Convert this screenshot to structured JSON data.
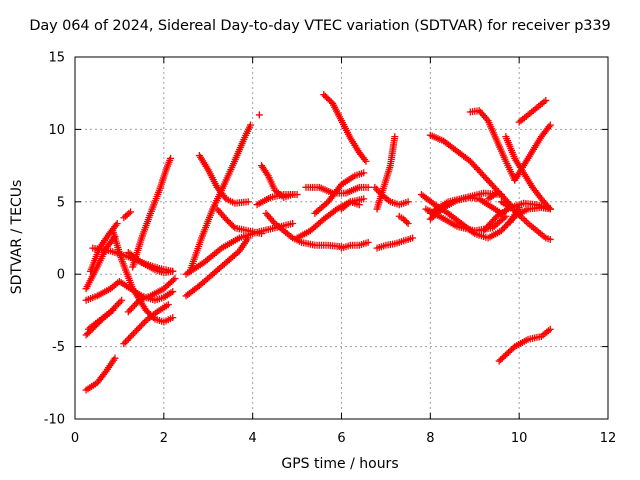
{
  "chart_data": {
    "type": "scatter",
    "title": "Day 064 of 2024, Sidereal Day-to-day VTEC variation (SDTVAR) for receiver p339",
    "xlabel": "GPS time / hours",
    "ylabel": "SDTVAR / TECUs",
    "xlim": [
      0,
      12
    ],
    "ylim": [
      -10,
      15
    ],
    "xticks": [
      "0",
      "2",
      "4",
      "6",
      "8",
      "10",
      "12"
    ],
    "yticks": [
      "-10",
      "-5",
      "0",
      "5",
      "10",
      "15"
    ],
    "grid": true,
    "marker": "plus",
    "marker_color": "#ff0000",
    "tracks": [
      {
        "x": [
          0.25,
          0.5,
          0.7,
          0.9
        ],
        "y": [
          -8.0,
          -7.5,
          -6.7,
          -5.8
        ]
      },
      {
        "x": [
          0.25,
          0.45,
          0.65,
          0.85
        ],
        "y": [
          -4.2,
          -3.6,
          -3.0,
          -2.5
        ]
      },
      {
        "x": [
          0.25,
          0.5,
          0.8,
          1.0,
          1.2,
          1.5,
          1.8,
          2.0,
          2.2
        ],
        "y": [
          -1.8,
          -1.5,
          -1.0,
          -0.5,
          -0.9,
          -1.5,
          -1.8,
          -1.6,
          -1.2
        ]
      },
      {
        "x": [
          0.25,
          0.5,
          0.7,
          0.9
        ],
        "y": [
          -1.0,
          0.5,
          1.8,
          2.6
        ]
      },
      {
        "x": [
          0.35,
          0.55,
          0.75,
          0.95
        ],
        "y": [
          0.2,
          1.8,
          2.7,
          3.5
        ]
      },
      {
        "x": [
          0.3,
          0.55,
          0.8,
          1.05
        ],
        "y": [
          -3.8,
          -3.2,
          -2.6,
          -1.8
        ]
      },
      {
        "x": [
          0.4,
          0.8,
          1.2,
          1.6,
          1.9,
          2.2
        ],
        "y": [
          1.8,
          1.6,
          1.2,
          0.7,
          0.4,
          0.2
        ]
      },
      {
        "x": [
          0.85,
          1.05,
          1.3,
          1.6,
          1.8,
          2.0,
          2.2
        ],
        "y": [
          3.0,
          1.0,
          -1.0,
          -2.5,
          -3.1,
          -3.3,
          -3.0
        ]
      },
      {
        "x": [
          1.1,
          1.25
        ],
        "y": [
          3.9,
          4.3
        ]
      },
      {
        "x": [
          1.1,
          1.35,
          1.6,
          1.85,
          2.1
        ],
        "y": [
          -4.8,
          -4.0,
          -3.2,
          -2.6,
          -2.1
        ]
      },
      {
        "x": [
          1.2,
          1.45,
          1.7,
          2.0,
          2.25
        ],
        "y": [
          -2.6,
          -1.8,
          -1.5,
          -1.0,
          -0.3
        ]
      },
      {
        "x": [
          1.3,
          1.5,
          1.7,
          1.9,
          2.05,
          2.15
        ],
        "y": [
          0.5,
          2.5,
          4.2,
          5.8,
          7.2,
          8.0
        ]
      },
      {
        "x": [
          1.2,
          1.5,
          1.8,
          2.0,
          2.2
        ],
        "y": [
          1.5,
          0.8,
          0.3,
          0.1,
          0.2
        ]
      },
      {
        "x": [
          2.5,
          2.8,
          3.1,
          3.4,
          3.7,
          3.9
        ],
        "y": [
          -1.5,
          -0.8,
          0.0,
          0.8,
          1.6,
          2.5
        ]
      },
      {
        "x": [
          2.5,
          2.9,
          3.3,
          3.7,
          4.1,
          4.5,
          4.9
        ],
        "y": [
          0.0,
          0.8,
          1.8,
          2.5,
          2.9,
          3.2,
          3.5
        ]
      },
      {
        "x": [
          2.6,
          2.85,
          3.1,
          3.3,
          3.55,
          3.8,
          3.95
        ],
        "y": [
          0.3,
          2.5,
          4.5,
          5.8,
          7.5,
          9.3,
          10.3
        ]
      },
      {
        "x": [
          2.8,
          3.0,
          3.2,
          3.4,
          3.6,
          3.9
        ],
        "y": [
          8.2,
          7.2,
          6.0,
          5.2,
          4.9,
          5.0
        ]
      },
      {
        "x": [
          3.2,
          3.4,
          3.6,
          3.9,
          4.2
        ],
        "y": [
          4.5,
          3.8,
          3.2,
          3.0,
          2.8
        ]
      },
      {
        "x": [
          4.15
        ],
        "y": [
          11.0
        ]
      },
      {
        "x": [
          4.2,
          4.35,
          4.5,
          4.7,
          4.9
        ],
        "y": [
          7.5,
          6.8,
          5.8,
          5.3,
          5.5
        ]
      },
      {
        "x": [
          4.1,
          4.4,
          4.7,
          5.0
        ],
        "y": [
          4.8,
          5.3,
          5.5,
          5.5
        ]
      },
      {
        "x": [
          4.3,
          4.5,
          4.7,
          4.9,
          5.1,
          5.4,
          5.7,
          6.0
        ],
        "y": [
          4.2,
          3.5,
          3.0,
          2.5,
          2.2,
          2.0,
          2.0,
          1.9
        ]
      },
      {
        "x": [
          5.6,
          5.8,
          6.0,
          6.2,
          6.4,
          6.55
        ],
        "y": [
          12.4,
          11.8,
          10.6,
          9.4,
          8.4,
          7.8
        ]
      },
      {
        "x": [
          5.2,
          5.5,
          5.8,
          6.1,
          6.4,
          6.6
        ],
        "y": [
          6.0,
          6.0,
          5.6,
          5.6,
          6.0,
          6.0
        ]
      },
      {
        "x": [
          5.0,
          5.3,
          5.6,
          5.9,
          6.2,
          6.5
        ],
        "y": [
          2.5,
          3.0,
          3.8,
          4.5,
          5.0,
          5.2
        ]
      },
      {
        "x": [
          5.4,
          5.7,
          6.0,
          6.3,
          6.5
        ],
        "y": [
          4.2,
          5.0,
          6.2,
          6.8,
          7.0
        ]
      },
      {
        "x": [
          6.0,
          6.2,
          6.4,
          6.6
        ],
        "y": [
          1.8,
          2.0,
          2.0,
          2.2
        ]
      },
      {
        "x": [
          6.0,
          6.2,
          6.4
        ],
        "y": [
          4.5,
          5.0,
          4.8
        ]
      },
      {
        "x": [
          6.8,
          7.0,
          7.2,
          7.4,
          7.6
        ],
        "y": [
          1.8,
          2.0,
          2.1,
          2.3,
          2.5
        ]
      },
      {
        "x": [
          6.75,
          6.9,
          7.1,
          7.3,
          7.5
        ],
        "y": [
          6.0,
          5.5,
          5.0,
          4.8,
          5.0
        ]
      },
      {
        "x": [
          6.8,
          6.9,
          7.0,
          7.1,
          7.15,
          7.2
        ],
        "y": [
          4.5,
          5.5,
          6.5,
          7.5,
          8.5,
          9.5
        ]
      },
      {
        "x": [
          7.3,
          7.4,
          7.5
        ],
        "y": [
          4.0,
          3.8,
          3.5
        ]
      },
      {
        "x": [
          7.8,
          8.1,
          8.4,
          8.7,
          9.0,
          9.3,
          9.6,
          9.9,
          10.2,
          10.5,
          10.7
        ],
        "y": [
          5.5,
          4.8,
          4.2,
          3.5,
          2.8,
          2.5,
          3.0,
          4.0,
          4.5,
          4.6,
          4.5
        ]
      },
      {
        "x": [
          8.0,
          8.3,
          8.6,
          8.9,
          9.2,
          9.5,
          9.8
        ],
        "y": [
          9.6,
          9.2,
          8.5,
          7.8,
          6.8,
          5.8,
          4.8
        ]
      },
      {
        "x": [
          7.9,
          8.2,
          8.6,
          9.0,
          9.4,
          9.7
        ],
        "y": [
          4.5,
          4.0,
          3.3,
          3.0,
          3.2,
          4.0
        ]
      },
      {
        "x": [
          8.0,
          8.3,
          8.6,
          8.9,
          9.1,
          9.3,
          9.6
        ],
        "y": [
          3.8,
          4.6,
          5.1,
          5.3,
          5.2,
          4.8,
          4.2
        ]
      },
      {
        "x": [
          8.0,
          8.4,
          8.8,
          9.2,
          9.6
        ],
        "y": [
          4.2,
          5.0,
          5.3,
          5.6,
          5.5
        ]
      },
      {
        "x": [
          8.9,
          9.1,
          9.3,
          9.5,
          9.7,
          9.9
        ],
        "y": [
          11.2,
          11.3,
          10.6,
          9.2,
          7.8,
          6.5
        ]
      },
      {
        "x": [
          9.2,
          9.5,
          9.8,
          10.1,
          10.4,
          10.7
        ],
        "y": [
          3.0,
          4.0,
          4.6,
          4.9,
          4.8,
          4.5
        ]
      },
      {
        "x": [
          9.6,
          9.9,
          10.2,
          10.4,
          10.6,
          10.7
        ],
        "y": [
          5.0,
          4.4,
          3.5,
          3.0,
          2.5,
          2.4
        ]
      },
      {
        "x": [
          9.7,
          9.9,
          10.1,
          10.3,
          10.5,
          10.7
        ],
        "y": [
          9.5,
          8.0,
          7.0,
          6.0,
          5.2,
          4.5
        ]
      },
      {
        "x": [
          9.9,
          10.1,
          10.3,
          10.5,
          10.7
        ],
        "y": [
          6.5,
          7.5,
          8.5,
          9.5,
          10.3
        ]
      },
      {
        "x": [
          9.8,
          10.0
        ],
        "y": [
          3.6,
          4.6
        ]
      },
      {
        "x": [
          9.3,
          9.5
        ],
        "y": [
          5.2,
          5.6
        ]
      },
      {
        "x": [
          10.0,
          10.2,
          10.4,
          10.6
        ],
        "y": [
          10.5,
          11.0,
          11.5,
          12.0
        ]
      },
      {
        "x": [
          9.55,
          9.9,
          10.2,
          10.5,
          10.7
        ],
        "y": [
          -6.0,
          -5.0,
          -4.5,
          -4.3,
          -3.8
        ]
      }
    ]
  }
}
